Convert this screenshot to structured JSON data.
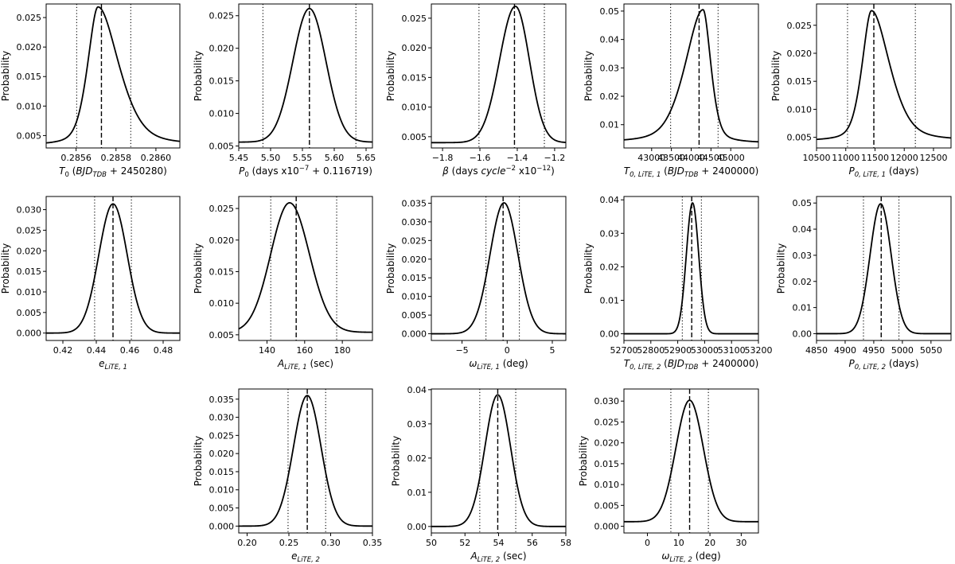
{
  "figure": {
    "description_ylabel": "Probability"
  },
  "chart_data": [
    {
      "type": "line",
      "id": "T0",
      "title": "",
      "xlabel": "T_0 (BJD_TDB + 2450280)",
      "xlabel_parts": [
        {
          "t": "T",
          "s": "i"
        },
        {
          "t": "0",
          "s": "sub"
        },
        {
          "t": " ("
        },
        {
          "t": "BJD",
          "s": "i"
        },
        {
          "t": "TDB",
          "s": "isub"
        },
        {
          "t": " + 2450280)"
        }
      ],
      "ylabel": "Probability",
      "xlim": [
        0.28545,
        0.28612
      ],
      "ylim": [
        0.0029,
        0.0273
      ],
      "xticks": [
        0.2856,
        0.2858,
        0.286
      ],
      "xtick_labels": [
        "0.2856",
        "0.2858",
        "0.2860"
      ],
      "yticks": [
        0.005,
        0.01,
        0.015,
        0.02,
        0.025
      ],
      "ytick_labels": [
        "0.005",
        "0.010",
        "0.015",
        "0.020",
        "0.025"
      ],
      "curve": {
        "shape": "skew",
        "peak": 0.28571,
        "peak_y": 0.0268,
        "baseline": 0.0033,
        "sigma_left": 5.5e-05,
        "sigma_right": 0.00011
      },
      "vlines": {
        "median": 0.285727,
        "lower": 0.285603,
        "upper": 0.285874
      }
    },
    {
      "type": "line",
      "id": "P0",
      "title": "",
      "xlabel": "P_0 (days x10^-7 + 0.116719)",
      "xlabel_parts": [
        {
          "t": "P",
          "s": "i"
        },
        {
          "t": "0",
          "s": "sub"
        },
        {
          "t": " (days x10"
        },
        {
          "t": "−7",
          "s": "sup"
        },
        {
          "t": " + 0.116719)"
        }
      ],
      "ylabel": "Probability",
      "xlim": [
        5.45,
        5.66
      ],
      "ylim": [
        0.0047,
        0.0268
      ],
      "xticks": [
        5.45,
        5.5,
        5.55,
        5.6,
        5.65
      ],
      "xtick_labels": [
        "5.45",
        "5.50",
        "5.55",
        "5.60",
        "5.65"
      ],
      "yticks": [
        0.005,
        0.01,
        0.015,
        0.02,
        0.025
      ],
      "ytick_labels": [
        "0.005",
        "0.010",
        "0.015",
        "0.020",
        "0.025"
      ],
      "curve": {
        "shape": "gauss",
        "peak": 5.561,
        "peak_y": 0.0261,
        "baseline": 0.0056,
        "sigma_left": 0.026,
        "sigma_right": 0.026
      },
      "vlines": {
        "median": 5.561,
        "lower": 5.488,
        "upper": 5.634
      }
    },
    {
      "type": "line",
      "id": "beta",
      "title": "",
      "xlabel": "β (days cycle^-2 x10^-12)",
      "xlabel_parts": [
        {
          "t": "β",
          "s": "i"
        },
        {
          "t": " (days "
        },
        {
          "t": "cycle",
          "s": "i"
        },
        {
          "t": "−2",
          "s": "sup"
        },
        {
          "t": " x10"
        },
        {
          "t": "−12",
          "s": "sup"
        },
        {
          "t": ")"
        }
      ],
      "ylabel": "Probability",
      "xlim": [
        -1.86,
        -1.14
      ],
      "ylim": [
        0.0031,
        0.0274
      ],
      "xticks": [
        -1.8,
        -1.6,
        -1.4,
        -1.2
      ],
      "xtick_labels": [
        "−1.8",
        "−1.6",
        "−1.4",
        "−1.2"
      ],
      "yticks": [
        0.005,
        0.01,
        0.015,
        0.02,
        0.025
      ],
      "ytick_labels": [
        "0.005",
        "0.010",
        "0.015",
        "0.020",
        "0.025"
      ],
      "curve": {
        "shape": "gauss",
        "peak": -1.41,
        "peak_y": 0.027,
        "baseline": 0.004,
        "sigma_left": 0.085,
        "sigma_right": 0.075
      },
      "vlines": {
        "median": -1.415,
        "lower": -1.605,
        "upper": -1.255
      }
    },
    {
      "type": "line",
      "id": "T0LiTE1",
      "title": "",
      "xlabel": "T_0,LiTE,1 (BJD_TDB + 2400000)",
      "xlabel_parts": [
        {
          "t": "T",
          "s": "i"
        },
        {
          "t": "0, LiTE, 1",
          "s": "isub"
        },
        {
          "t": " ("
        },
        {
          "t": "BJD",
          "s": "i"
        },
        {
          "t": "TDB",
          "s": "isub"
        },
        {
          "t": " + 2400000)"
        }
      ],
      "ylabel": "Probability",
      "xlim": [
        42300,
        45700
      ],
      "ylim": [
        0.0018,
        0.0525
      ],
      "xticks": [
        43000,
        43500,
        44000,
        44500,
        45000
      ],
      "xtick_labels": [
        "43000",
        "43500",
        "44000",
        "44500",
        "45000"
      ],
      "yticks": [
        0.01,
        0.02,
        0.03,
        0.04,
        0.05
      ],
      "ytick_labels": [
        "0.01",
        "0.02",
        "0.03",
        "0.04",
        "0.05"
      ],
      "curve": {
        "shape": "skew",
        "peak": 44300,
        "peak_y": 0.0505,
        "baseline": 0.0035,
        "sigma_left": 480,
        "sigma_right": 210
      },
      "vlines": {
        "median": 44200,
        "lower": 43480,
        "upper": 44680
      }
    },
    {
      "type": "line",
      "id": "P0LiTE1",
      "title": "",
      "xlabel": "P_0,LiTE,1 (days)",
      "xlabel_parts": [
        {
          "t": "P",
          "s": "i"
        },
        {
          "t": "0, LiTE, 1",
          "s": "isub"
        },
        {
          "t": " (days)"
        }
      ],
      "ylabel": "Probability",
      "xlim": [
        10500,
        12800
      ],
      "ylim": [
        0.0031,
        0.0288
      ],
      "xticks": [
        10500,
        11000,
        11500,
        12000,
        12500
      ],
      "xtick_labels": [
        "10500",
        "11000",
        "11500",
        "12000",
        "12500"
      ],
      "yticks": [
        0.005,
        0.01,
        0.015,
        0.02,
        0.025
      ],
      "ytick_labels": [
        "0.005",
        "0.010",
        "0.015",
        "0.020",
        "0.025"
      ],
      "curve": {
        "shape": "skew",
        "peak": 11440,
        "peak_y": 0.0276,
        "baseline": 0.0043,
        "sigma_left": 170,
        "sigma_right": 330
      },
      "vlines": {
        "median": 11480,
        "lower": 11030,
        "upper": 12190
      }
    },
    {
      "type": "line",
      "id": "e1",
      "title": "",
      "xlabel": "e_LiTE,1",
      "xlabel_parts": [
        {
          "t": "e",
          "s": "i"
        },
        {
          "t": "LiTE, 1",
          "s": "isub"
        }
      ],
      "ylabel": "Probability",
      "xlim": [
        0.41,
        0.49
      ],
      "ylim": [
        -0.0018,
        0.0332
      ],
      "xticks": [
        0.42,
        0.44,
        0.46,
        0.48
      ],
      "xtick_labels": [
        "0.42",
        "0.44",
        "0.46",
        "0.48"
      ],
      "yticks": [
        0.0,
        0.005,
        0.01,
        0.015,
        0.02,
        0.025,
        0.03
      ],
      "ytick_labels": [
        "0.000",
        "0.005",
        "0.010",
        "0.015",
        "0.020",
        "0.025",
        "0.030"
      ],
      "curve": {
        "shape": "gauss",
        "peak": 0.45,
        "peak_y": 0.0314,
        "baseline": 0.0,
        "sigma_left": 0.0085,
        "sigma_right": 0.0085
      },
      "vlines": {
        "median": 0.45,
        "lower": 0.439,
        "upper": 0.461
      }
    },
    {
      "type": "line",
      "id": "A1",
      "title": "",
      "xlabel": "A_LiTE,1 (sec)",
      "xlabel_parts": [
        {
          "t": "A",
          "s": "i"
        },
        {
          "t": "LiTE, 1",
          "s": "isub"
        },
        {
          "t": " (sec)"
        }
      ],
      "ylabel": "Probability",
      "xlim": [
        125,
        196
      ],
      "ylim": [
        0.0041,
        0.0269
      ],
      "xticks": [
        140,
        160,
        180
      ],
      "xtick_labels": [
        "140",
        "160",
        "180"
      ],
      "yticks": [
        0.005,
        0.01,
        0.015,
        0.02,
        0.025
      ],
      "ytick_labels": [
        "0.005",
        "0.010",
        "0.015",
        "0.020",
        "0.025"
      ],
      "curve": {
        "shape": "gauss",
        "peak": 152,
        "peak_y": 0.0259,
        "baseline": 0.0054,
        "sigma_left": 10,
        "sigma_right": 10.5
      },
      "vlines": {
        "median": 155.5,
        "lower": 142,
        "upper": 177
      }
    },
    {
      "type": "line",
      "id": "w1",
      "title": "",
      "xlabel": "ω_LiTE,1 (deg)",
      "xlabel_parts": [
        {
          "t": "ω",
          "s": "i"
        },
        {
          "t": "LiTE, 1",
          "s": "isub"
        },
        {
          "t": " (deg)"
        }
      ],
      "ylabel": "Probability",
      "xlim": [
        -8.4,
        6.5
      ],
      "ylim": [
        -0.0018,
        0.0368
      ],
      "xticks": [
        -5,
        0,
        5
      ],
      "xtick_labels": [
        "−5",
        "0",
        "5"
      ],
      "yticks": [
        0.0,
        0.005,
        0.01,
        0.015,
        0.02,
        0.025,
        0.03,
        0.035
      ],
      "ytick_labels": [
        "0.000",
        "0.005",
        "0.010",
        "0.015",
        "0.020",
        "0.025",
        "0.030",
        "0.035"
      ],
      "curve": {
        "shape": "gauss",
        "peak": -0.35,
        "peak_y": 0.0351,
        "baseline": 0.0,
        "sigma_left": 1.55,
        "sigma_right": 1.55
      },
      "vlines": {
        "median": -0.45,
        "lower": -2.35,
        "upper": 1.35
      }
    },
    {
      "type": "line",
      "id": "T0LiTE2",
      "title": "",
      "xlabel": "T_0,LiTE,2 (BJD_TDB + 2400000)",
      "xlabel_parts": [
        {
          "t": "T",
          "s": "i"
        },
        {
          "t": "0, LiTE, 2",
          "s": "isub"
        },
        {
          "t": " ("
        },
        {
          "t": "BJD",
          "s": "i"
        },
        {
          "t": "TDB",
          "s": "isub"
        },
        {
          "t": " + 2400000)"
        }
      ],
      "ylabel": "Probability",
      "xlim": [
        52700,
        53200
      ],
      "ylim": [
        -0.002,
        0.041
      ],
      "xticks": [
        52700,
        52800,
        52900,
        53000,
        53100,
        53200
      ],
      "xtick_labels": [
        "52700",
        "52800",
        "52900",
        "53000",
        "53100",
        "53200"
      ],
      "yticks": [
        0.0,
        0.01,
        0.02,
        0.03,
        0.04
      ],
      "ytick_labels": [
        "0.00",
        "0.01",
        "0.02",
        "0.03",
        "0.04"
      ],
      "curve": {
        "shape": "gauss",
        "peak": 52955,
        "peak_y": 0.0391,
        "baseline": 0.0,
        "sigma_left": 23,
        "sigma_right": 23
      },
      "vlines": {
        "median": 52952,
        "lower": 52917,
        "upper": 52988
      }
    },
    {
      "type": "line",
      "id": "P0LiTE2",
      "title": "",
      "xlabel": "P_0,LiTE,2 (days)",
      "xlabel_parts": [
        {
          "t": "P",
          "s": "i"
        },
        {
          "t": "0, LiTE, 2",
          "s": "isub"
        },
        {
          "t": " (days)"
        }
      ],
      "ylabel": "Probability",
      "xlim": [
        4850,
        5085
      ],
      "ylim": [
        -0.0026,
        0.0525
      ],
      "xticks": [
        4850,
        4900,
        4950,
        5000,
        5050
      ],
      "xtick_labels": [
        "4850",
        "4900",
        "4950",
        "5000",
        "5050"
      ],
      "yticks": [
        0.0,
        0.01,
        0.02,
        0.03,
        0.04,
        0.05
      ],
      "ytick_labels": [
        "0.00",
        "0.01",
        "0.02",
        "0.03",
        "0.04",
        "0.05"
      ],
      "curve": {
        "shape": "gauss",
        "peak": 4962,
        "peak_y": 0.0497,
        "baseline": 0.0,
        "sigma_left": 18.5,
        "sigma_right": 18.5
      },
      "vlines": {
        "median": 4963,
        "lower": 4932,
        "upper": 4994
      }
    },
    {
      "type": "line",
      "id": "e2",
      "title": "",
      "xlabel": "e_LiTE,2",
      "xlabel_parts": [
        {
          "t": "e",
          "s": "i"
        },
        {
          "t": "LiTE, 2",
          "s": "isub"
        }
      ],
      "ylabel": "Probability",
      "xlim": [
        0.19,
        0.35
      ],
      "ylim": [
        -0.0019,
        0.0378
      ],
      "xticks": [
        0.2,
        0.25,
        0.3,
        0.35
      ],
      "xtick_labels": [
        "0.20",
        "0.25",
        "0.30",
        "0.35"
      ],
      "yticks": [
        0.0,
        0.005,
        0.01,
        0.015,
        0.02,
        0.025,
        0.03,
        0.035
      ],
      "ytick_labels": [
        "0.000",
        "0.005",
        "0.010",
        "0.015",
        "0.020",
        "0.025",
        "0.030",
        "0.035"
      ],
      "curve": {
        "shape": "gauss",
        "peak": 0.272,
        "peak_y": 0.036,
        "baseline": 0.0,
        "sigma_left": 0.0165,
        "sigma_right": 0.0165
      },
      "vlines": {
        "median": 0.272,
        "lower": 0.249,
        "upper": 0.294
      }
    },
    {
      "type": "line",
      "id": "A2",
      "title": "",
      "xlabel": "A_LiTE,2 (sec)",
      "xlabel_parts": [
        {
          "t": "A",
          "s": "i"
        },
        {
          "t": "LiTE, 2",
          "s": "isub"
        },
        {
          "t": " (sec)"
        }
      ],
      "ylabel": "Probability",
      "xlim": [
        50,
        58
      ],
      "ylim": [
        -0.0019,
        0.0402
      ],
      "xticks": [
        50,
        52,
        54,
        56,
        58
      ],
      "xtick_labels": [
        "50",
        "52",
        "54",
        "56",
        "58"
      ],
      "yticks": [
        0.0,
        0.01,
        0.02,
        0.03,
        0.04
      ],
      "ytick_labels": [
        "0.00",
        "0.01",
        "0.02",
        "0.03",
        "0.04"
      ],
      "curve": {
        "shape": "gauss",
        "peak": 53.95,
        "peak_y": 0.0385,
        "baseline": 0.0,
        "sigma_left": 0.76,
        "sigma_right": 0.76
      },
      "vlines": {
        "median": 53.95,
        "lower": 52.88,
        "upper": 55.02
      }
    },
    {
      "type": "line",
      "id": "w2",
      "title": "",
      "xlabel": "ω_LiTE,2 (deg)",
      "xlabel_parts": [
        {
          "t": "ω",
          "s": "i"
        },
        {
          "t": "LiTE, 2",
          "s": "isub"
        },
        {
          "t": " (deg)"
        }
      ],
      "ylabel": "Probability",
      "xlim": [
        -7.5,
        35.5
      ],
      "ylim": [
        -0.0016,
        0.0329
      ],
      "xticks": [
        0,
        10,
        20,
        30
      ],
      "xtick_labels": [
        "0",
        "10",
        "20",
        "30"
      ],
      "yticks": [
        0.0,
        0.005,
        0.01,
        0.015,
        0.02,
        0.025,
        0.03
      ],
      "ytick_labels": [
        "0.000",
        "0.005",
        "0.010",
        "0.015",
        "0.020",
        "0.025",
        "0.030"
      ],
      "curve": {
        "shape": "gauss",
        "peak": 13.5,
        "peak_y": 0.0302,
        "baseline": 0.0011,
        "sigma_left": 4.4,
        "sigma_right": 4.4
      },
      "vlines": {
        "median": 13.5,
        "lower": 7.5,
        "upper": 19.5
      }
    }
  ]
}
